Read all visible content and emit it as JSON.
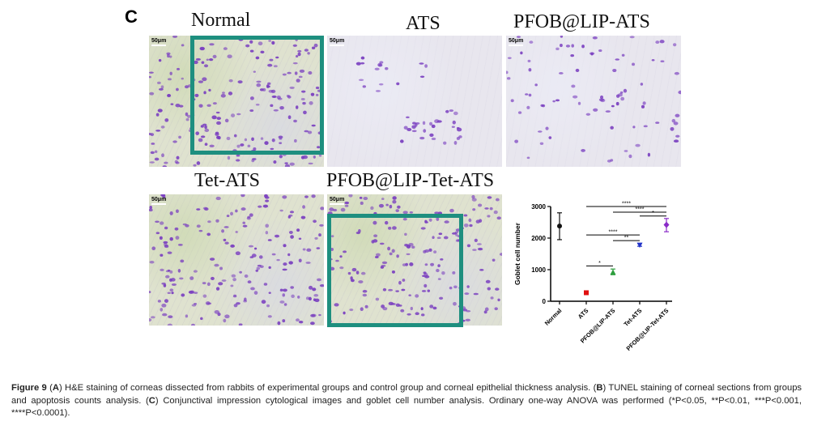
{
  "panel_letter": "C",
  "images": [
    {
      "title": "Normal",
      "scale": "50μm"
    },
    {
      "title": "ATS",
      "scale": "50μm"
    },
    {
      "title": "PFOB@LIP-ATS",
      "scale": "50μm"
    },
    {
      "title": "Tet-ATS",
      "scale": "50μm"
    },
    {
      "title": "PFOB@LIP-Tet-ATS",
      "scale": "50μm"
    }
  ],
  "colors": {
    "box": "#1e8f7f",
    "cell": "#7a3fc0"
  },
  "chart_data": {
    "type": "scatter",
    "ylabel": "Goblet cell number",
    "categories": [
      "Normal",
      "ATS",
      "PFOB@LIP-ATS",
      "Tet-ATS",
      "PFOB@LIP-Tet-ATS"
    ],
    "yticks": [
      "0",
      "1000",
      "2000",
      "3000"
    ],
    "ylim": [
      0,
      3000
    ],
    "points": [
      {
        "category": "Normal",
        "value": 2380,
        "low": 1950,
        "high": 2800,
        "color": "#111111",
        "marker": "circle"
      },
      {
        "category": "ATS",
        "value": 270,
        "low": 230,
        "high": 310,
        "color": "#e01010",
        "marker": "square"
      },
      {
        "category": "PFOB@LIP-ATS",
        "value": 920,
        "low": 840,
        "high": 1020,
        "color": "#2e9e3e",
        "marker": "triangle"
      },
      {
        "category": "Tet-ATS",
        "value": 1780,
        "low": 1740,
        "high": 1830,
        "color": "#2233c8",
        "marker": "triangle-down"
      },
      {
        "category": "PFOB@LIP-Tet-ATS",
        "value": 2420,
        "low": 2200,
        "high": 2620,
        "color": "#8a2bc8",
        "marker": "diamond"
      }
    ],
    "significance": [
      {
        "from": 1,
        "to": 4,
        "level": 3000,
        "label": "****"
      },
      {
        "from": 2,
        "to": 4,
        "level": 2820,
        "label": "****"
      },
      {
        "from": 3,
        "to": 4,
        "level": 2700,
        "label": "*"
      },
      {
        "from": 1,
        "to": 3,
        "level": 2100,
        "label": "****"
      },
      {
        "from": 2,
        "to": 3,
        "level": 1920,
        "label": "**"
      },
      {
        "from": 1,
        "to": 2,
        "level": 1120,
        "label": "*"
      }
    ]
  },
  "caption": {
    "fig_label": "Figure 9",
    "part_a": " (",
    "a": "A",
    "part_b": ") H&E staining of corneas dissected from rabbits of experimental groups and control group and corneal epithelial thickness analysis. (",
    "b": "B",
    "part_c": ") TUNEL staining of corneal sections from groups and apoptosis counts analysis. (",
    "c": "C",
    "part_d": ") Conjunctival impression cytological images and goblet cell number analysis. Ordinary one-way ANOVA was performed (*P<0.05, **P<0.01, ***P<0.001, ****P<0.0001)."
  }
}
